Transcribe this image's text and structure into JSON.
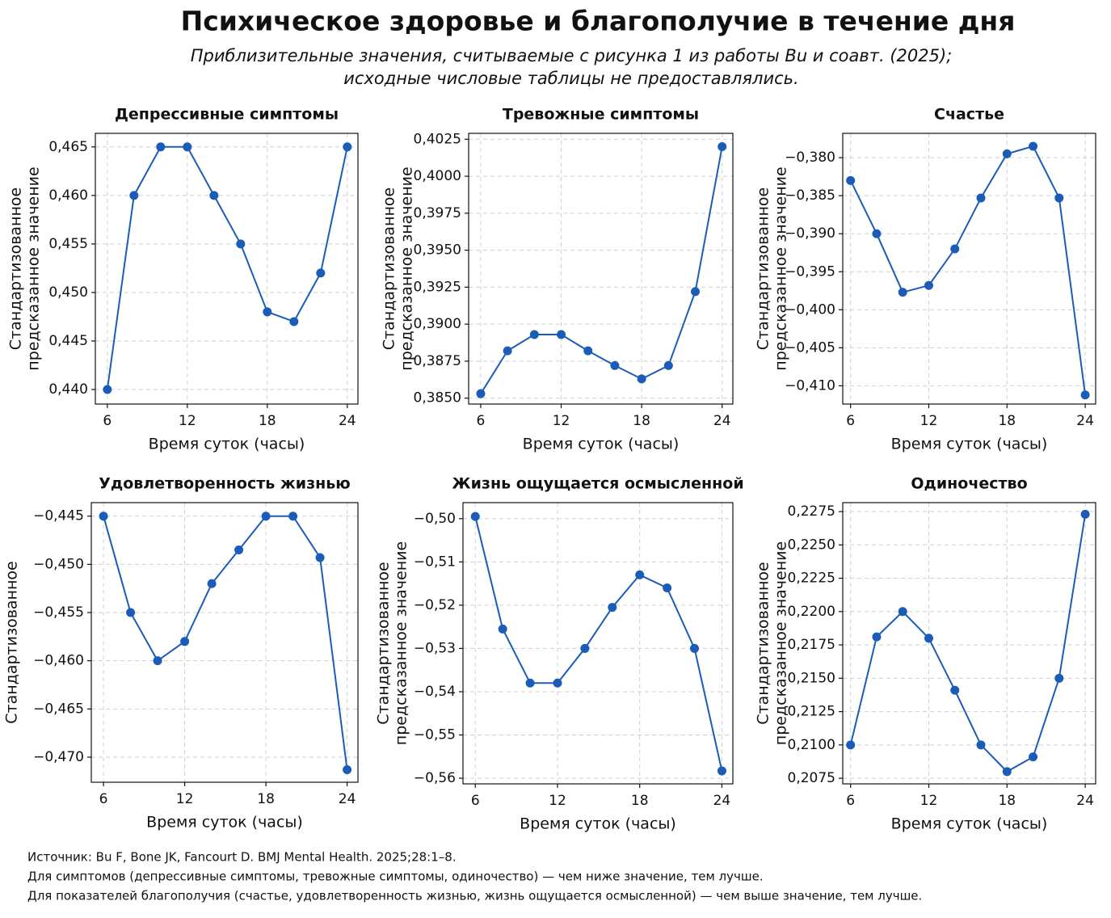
{
  "title": "Психическое здоровье и благополучие в течение дня",
  "subtitle": [
    "Приблизительные значения, считываемые с рисунка 1 из работы Bu и соавт. (2025);",
    "исходные числовые таблицы не предоставлялись."
  ],
  "notes": [
    "Источник: Bu F, Bone JK, Fancourt D. BMJ Mental Health. 2025;28:1–8.",
    "Для симптомов (депрессивные симптомы, тревожные симптомы, одиночество) — чем ниже значение, тем лучше.",
    "Для показателей благополучия (счастье, удовлетворенность жизнью, жизнь ощущается осмысленной) — чем выше значение, тем лучше."
  ],
  "chart_data": [
    {
      "type": "line",
      "title": "Депрессивные симптомы",
      "xlabel": "Время суток (часы)",
      "ylabel": [
        "Стандартизованное",
        "предсказанное значение"
      ],
      "x": [
        6,
        8,
        10,
        12,
        14,
        16,
        18,
        20,
        22,
        24
      ],
      "color": "#1a5cb8",
      "grid": true,
      "values": [
        0.44,
        0.46,
        0.465,
        0.465,
        0.46,
        0.455,
        0.448,
        0.447,
        0.452,
        0.465
      ],
      "xlim": [
        5.1,
        24.8
      ],
      "xticks": [
        6,
        12,
        18,
        24
      ],
      "ylim": [
        0.4385,
        0.4664
      ],
      "yticks": [
        {
          "value": 0.44,
          "label": "0,440"
        },
        {
          "value": 0.445,
          "label": "0,445"
        },
        {
          "value": 0.45,
          "label": "0,450"
        },
        {
          "value": 0.455,
          "label": "0,455"
        },
        {
          "value": 0.46,
          "label": "0,460"
        },
        {
          "value": 0.465,
          "label": "0,465"
        }
      ]
    },
    {
      "type": "line",
      "title": "Тревожные симптомы",
      "xlabel": "Время суток (часы)",
      "ylabel": [
        "Стандартизованное",
        "предсказанное значение"
      ],
      "x": [
        6,
        8,
        10,
        12,
        14,
        16,
        18,
        20,
        22,
        24
      ],
      "color": "#1a5cb8",
      "grid": true,
      "values": [
        0.3853,
        0.3882,
        0.3893,
        0.3893,
        0.3882,
        0.3872,
        0.3863,
        0.3872,
        0.3922,
        0.402
      ],
      "xlim": [
        5.1,
        24.8
      ],
      "xticks": [
        6,
        12,
        18,
        24
      ],
      "ylim": [
        0.3846,
        0.4029
      ],
      "yticks": [
        {
          "value": 0.385,
          "label": "0,3850"
        },
        {
          "value": 0.3875,
          "label": "0,3875"
        },
        {
          "value": 0.39,
          "label": "0,3900"
        },
        {
          "value": 0.3925,
          "label": "0,3925"
        },
        {
          "value": 0.395,
          "label": "0,3950"
        },
        {
          "value": 0.3975,
          "label": "0,3975"
        },
        {
          "value": 0.4,
          "label": "0,4000"
        },
        {
          "value": 0.4025,
          "label": "0,4025"
        }
      ]
    },
    {
      "type": "line",
      "title": "Счастье",
      "xlabel": "Время суток (часы)",
      "ylabel": [
        "Стандартизованное",
        "предсказанное значение"
      ],
      "x": [
        6,
        8,
        10,
        12,
        14,
        16,
        18,
        20,
        22,
        24
      ],
      "color": "#1a5cb8",
      "grid": true,
      "values": [
        -0.383,
        -0.39,
        -0.3977,
        -0.3968,
        -0.392,
        -0.3853,
        -0.3795,
        -0.3785,
        -0.3853,
        -0.4112
      ],
      "xlim": [
        5.4,
        24.8
      ],
      "xticks": [
        6,
        12,
        18,
        24
      ],
      "ylim": [
        -0.4124,
        -0.3768
      ],
      "yticks": [
        {
          "value": -0.41,
          "label": "−0,410"
        },
        {
          "value": -0.405,
          "label": "−0,405"
        },
        {
          "value": -0.4,
          "label": "−0,400"
        },
        {
          "value": -0.395,
          "label": "−0,395"
        },
        {
          "value": -0.39,
          "label": "−0,390"
        },
        {
          "value": -0.385,
          "label": "−0,385"
        },
        {
          "value": -0.38,
          "label": "−0,380"
        }
      ]
    },
    {
      "type": "line",
      "title": "Удовлетворенность жизнью",
      "xlabel": "Время суток (часы)",
      "ylabel": [
        "Стандартизованное"
      ],
      "x": [
        6,
        8,
        10,
        12,
        14,
        16,
        18,
        20,
        22,
        24
      ],
      "color": "#1a5cb8",
      "grid": true,
      "values": [
        -0.445,
        -0.455,
        -0.46,
        -0.458,
        -0.452,
        -0.4485,
        -0.445,
        -0.445,
        -0.4493,
        -0.4713
      ],
      "xlim": [
        5.1,
        24.8
      ],
      "xticks": [
        6,
        12,
        18,
        24
      ],
      "ylim": [
        -0.4726,
        -0.4436
      ],
      "yticks": [
        {
          "value": -0.47,
          "label": "−0,470"
        },
        {
          "value": -0.465,
          "label": "−0,465"
        },
        {
          "value": -0.46,
          "label": "−0,460"
        },
        {
          "value": -0.455,
          "label": "−0,455"
        },
        {
          "value": -0.45,
          "label": "−0,450"
        },
        {
          "value": -0.445,
          "label": "−0,445"
        }
      ]
    },
    {
      "type": "line",
      "title": "Жизнь ощущается осмысленной",
      "xlabel": "Время суток (часы)",
      "ylabel": [
        "Стандартизованное",
        "предсказанное значение"
      ],
      "x": [
        6,
        8,
        10,
        12,
        14,
        16,
        18,
        20,
        22,
        24
      ],
      "color": "#1a5cb8",
      "grid": true,
      "values": [
        -0.4995,
        -0.5255,
        -0.538,
        -0.538,
        -0.53,
        -0.5205,
        -0.513,
        -0.516,
        -0.53,
        -0.5583
      ],
      "xlim": [
        5.1,
        24.8
      ],
      "xticks": [
        6,
        12,
        18,
        24
      ],
      "ylim": [
        -0.5613,
        -0.4963
      ],
      "yticks": [
        {
          "value": -0.56,
          "label": "−0,56"
        },
        {
          "value": -0.55,
          "label": "−0,55"
        },
        {
          "value": -0.54,
          "label": "−0,54"
        },
        {
          "value": -0.53,
          "label": "−0,53"
        },
        {
          "value": -0.52,
          "label": "−0,52"
        },
        {
          "value": -0.51,
          "label": "−0,51"
        },
        {
          "value": -0.5,
          "label": "−0,50"
        }
      ]
    },
    {
      "type": "line",
      "title": "Одиночество",
      "xlabel": "Время суток (часы)",
      "ylabel": [
        "Стандартизованное",
        "предсказанное значение"
      ],
      "x": [
        6,
        8,
        10,
        12,
        14,
        16,
        18,
        20,
        22,
        24
      ],
      "color": "#1a5cb8",
      "grid": true,
      "values": [
        0.21,
        0.2181,
        0.22,
        0.218,
        0.2141,
        0.21,
        0.208,
        0.2091,
        0.215,
        0.2273
      ],
      "xlim": [
        5.4,
        24.8
      ],
      "xticks": [
        6,
        12,
        18,
        24
      ],
      "ylim": [
        0.20708,
        0.22817
      ],
      "yticks": [
        {
          "value": 0.2075,
          "label": "0,2075"
        },
        {
          "value": 0.21,
          "label": "0,2100"
        },
        {
          "value": 0.2125,
          "label": "0,2125"
        },
        {
          "value": 0.215,
          "label": "0,2150"
        },
        {
          "value": 0.2175,
          "label": "0,2175"
        },
        {
          "value": 0.22,
          "label": "0,2200"
        },
        {
          "value": 0.2225,
          "label": "0,2225"
        },
        {
          "value": 0.225,
          "label": "0,2250"
        },
        {
          "value": 0.2275,
          "label": "0,2275"
        }
      ]
    }
  ]
}
